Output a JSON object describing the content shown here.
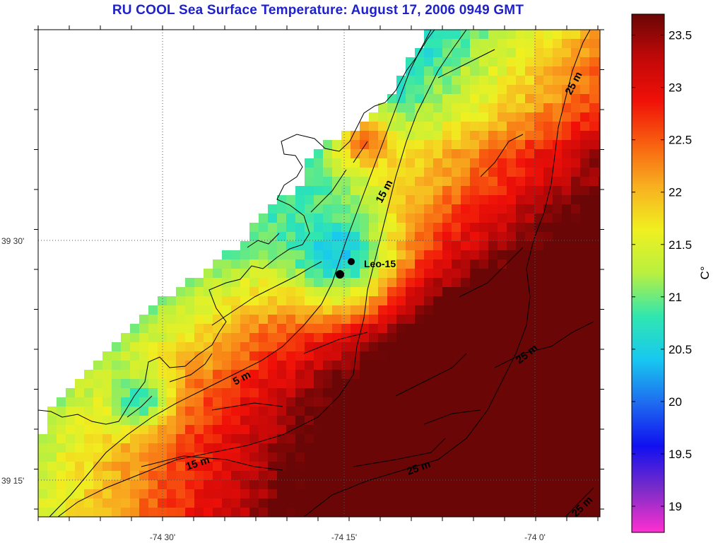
{
  "title": "RU COOL  Sea Surface Temperature:  August 17, 2006 0949 GMT",
  "x_axis": {
    "ticks": [
      "-74 30'",
      "-74 15'",
      "-74 0'"
    ]
  },
  "y_axis": {
    "ticks": [
      "39 30'",
      "39 15'"
    ]
  },
  "colorbar": {
    "unit": "C°",
    "min": 18.75,
    "max": 23.7,
    "ticks": [
      "23.5",
      "23",
      "22.5",
      "22",
      "21.5",
      "21",
      "20.5",
      "20",
      "19.5",
      "19"
    ],
    "colors": [
      "#ff2fd0",
      "#7b2cc8",
      "#1010f0",
      "#1e6cf0",
      "#18c8f0",
      "#30e6b0",
      "#b8f040",
      "#f0f020",
      "#f8b020",
      "#f86010",
      "#f01008",
      "#c00808",
      "#6a0606"
    ]
  },
  "station": {
    "label": "Leo-15"
  },
  "contour_labels": [
    "5 m",
    "15 m",
    "15 m",
    "25 m",
    "25 m",
    "25 m",
    "25 m"
  ]
}
